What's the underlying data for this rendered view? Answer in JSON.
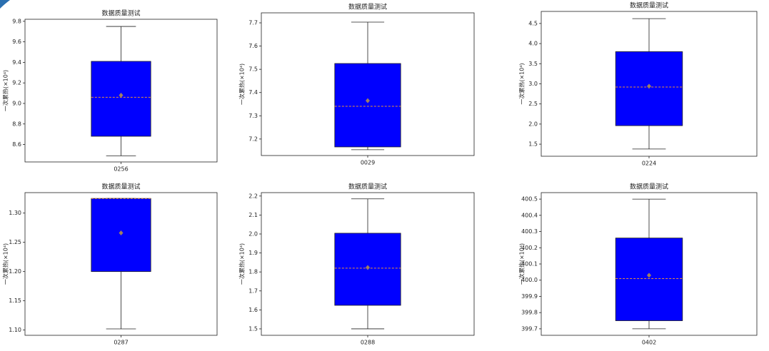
{
  "chart_data": [
    {
      "type": "box",
      "title": "数据质量测试",
      "y_label": "一次累热(×10⁴)",
      "categories": [
        "0256"
      ],
      "boxes": [
        {
          "low": 8.49,
          "q1": 8.68,
          "median": 9.06,
          "q3": 9.41,
          "high": 9.75,
          "mean": 9.08
        }
      ],
      "ylim": [
        8.43,
        9.82
      ],
      "yticks": [
        8.6,
        8.8,
        {
          "value": 9.0,
          "label": "9.0"
        },
        9.2,
        9.4,
        9.6,
        9.8
      ],
      "color": "#0000ff",
      "median_color": "#e8903a",
      "mean_color": "#a08060"
    },
    {
      "type": "box",
      "title": "数据质量测试",
      "y_label": "一次累热(×10⁴)",
      "categories": [
        "0029"
      ],
      "boxes": [
        {
          "low": 7.154,
          "q1": 7.166,
          "median": 7.341,
          "q3": 7.525,
          "high": 7.703,
          "mean": 7.365
        }
      ],
      "ylim": [
        7.129,
        7.743
      ],
      "yticks": [
        7.2,
        7.3,
        7.4,
        7.5,
        7.6,
        7.7
      ],
      "color": "#0000ff",
      "median_color": "#e8903a",
      "mean_color": "#a08060"
    },
    {
      "type": "box",
      "title": "数据质量测试",
      "y_label": "一次累热(×10⁴)",
      "categories": [
        "0224"
      ],
      "boxes": [
        {
          "low": 1.38,
          "q1": 1.96,
          "median": 2.92,
          "q3": 3.8,
          "high": 4.62,
          "mean": 2.94
        }
      ],
      "ylim": [
        1.2,
        4.8
      ],
      "yticks": [
        1.5,
        {
          "value": 2.0,
          "label": "2.0"
        },
        2.5,
        {
          "value": 3.0,
          "label": "3.0"
        },
        3.5,
        {
          "value": 4.0,
          "label": "4.0"
        },
        4.5
      ],
      "color": "#0000ff",
      "median_color": "#e8903a",
      "mean_color": "#a08060"
    },
    {
      "type": "box",
      "title": "数据质量测试",
      "y_label": "一次累热(×10⁴)",
      "categories": [
        "0287"
      ],
      "boxes": [
        {
          "low": 1.102,
          "q1": 1.2,
          "median": 1.325,
          "q3": 1.325,
          "high": 1.325,
          "mean": 1.266
        }
      ],
      "ylim": [
        1.091,
        1.335
      ],
      "yticks": [
        {
          "value": 1.1,
          "label": "1.10"
        },
        1.15,
        {
          "value": 1.2,
          "label": "1.20"
        },
        1.25,
        {
          "value": 1.3,
          "label": "1.30"
        }
      ],
      "color": "#0000ff",
      "median_color": "#e8903a",
      "mean_color": "#a08060"
    },
    {
      "type": "box",
      "title": "数据质量测试",
      "y_label": "一次累热(×10⁴)",
      "categories": [
        "0288"
      ],
      "boxes": [
        {
          "low": 1.5,
          "q1": 1.624,
          "median": 1.82,
          "q3": 2.004,
          "high": 2.185,
          "mean": 1.823
        }
      ],
      "ylim": [
        1.466,
        2.218
      ],
      "yticks": [
        1.5,
        1.6,
        1.7,
        1.8,
        1.9,
        {
          "value": 2.0,
          "label": "2.0"
        },
        2.1,
        2.2
      ],
      "color": "#0000ff",
      "median_color": "#e8903a",
      "mean_color": "#a08060"
    },
    {
      "type": "box",
      "title": "数据质量测试",
      "y_label": "一次累热(×10⁴)",
      "categories": [
        "0402"
      ],
      "boxes": [
        {
          "low": 399.7,
          "q1": 399.75,
          "median": 400.01,
          "q3": 400.26,
          "high": 400.5,
          "mean": 400.03
        }
      ],
      "ylim": [
        399.66,
        400.54
      ],
      "yticks": [
        399.7,
        399.8,
        399.9,
        {
          "value": 400.0,
          "label": "400.0"
        },
        400.1,
        400.2,
        400.3,
        400.4,
        400.5
      ],
      "color": "#0000ff",
      "median_color": "#e8903a",
      "mean_color": "#a08060"
    }
  ]
}
